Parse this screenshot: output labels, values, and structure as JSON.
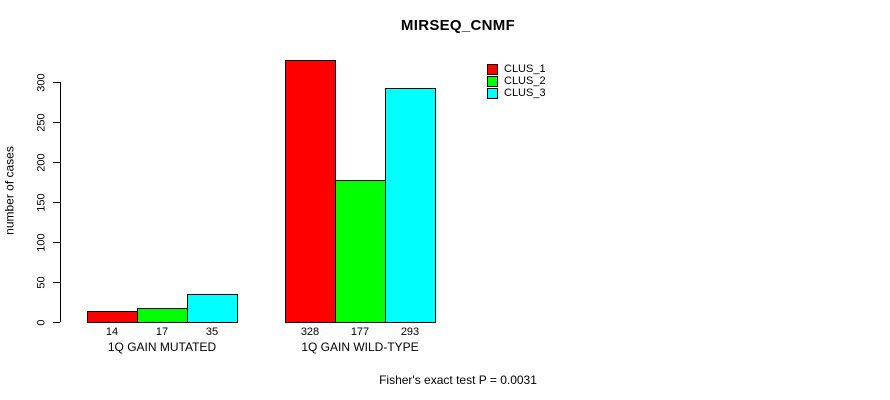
{
  "chart_data": {
    "type": "bar",
    "title": "MIRSEQ_CNMF",
    "ylabel": "number of cases",
    "xlabel": "",
    "categories": [
      "1Q GAIN MUTATED",
      "1Q GAIN WILD-TYPE"
    ],
    "series": [
      {
        "name": "CLUS_1",
        "color": "#ff0000",
        "values": [
          14,
          328
        ]
      },
      {
        "name": "CLUS_2",
        "color": "#00ff00",
        "values": [
          17,
          177
        ]
      },
      {
        "name": "CLUS_3",
        "color": "#00ffff",
        "values": [
          35,
          293
        ]
      }
    ],
    "bar_value_labels": [
      [
        "14",
        "328"
      ],
      [
        "17",
        "177"
      ],
      [
        "35",
        "293"
      ]
    ],
    "yticks": [
      "0",
      "50",
      "100",
      "150",
      "200",
      "250",
      "300"
    ],
    "ylim": [
      0,
      330
    ],
    "grid": false,
    "legend_position": "top-right",
    "annotation": "Fisher's exact test P = 0.0031"
  }
}
